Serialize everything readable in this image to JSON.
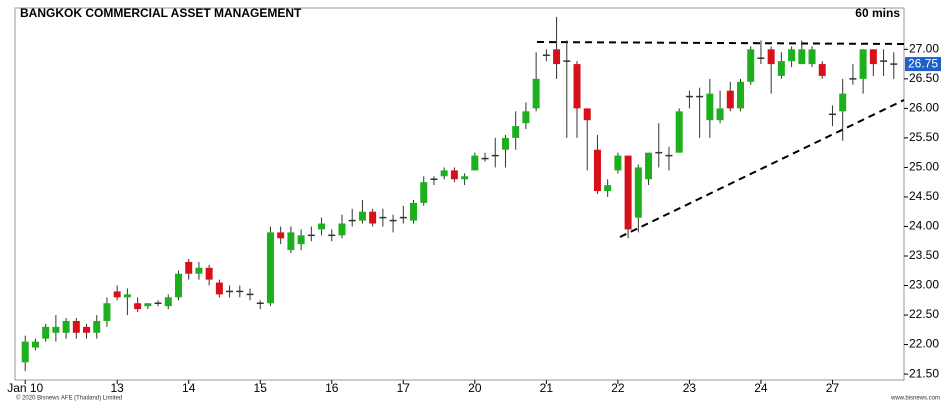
{
  "chart_data": {
    "type": "candlestick",
    "title": "BANGKOK COMMERCIAL ASSET MANAGEMENT",
    "subtitle": "60 mins",
    "footer_left": "© 2020 Bisnews AFE (Thailand) Limited",
    "footer_right": "www.bisnews.com",
    "up_color": "#1db01d",
    "down_color": "#d7101a",
    "last_price": 26.75,
    "last_price_color": "#1f5fc8",
    "ylim": [
      21.4,
      27.7
    ],
    "yticks": [
      {
        "value": 21.5,
        "label": "21.50"
      },
      {
        "value": 22,
        "label": "22.00"
      },
      {
        "value": 22.5,
        "label": "22.50"
      },
      {
        "value": 23,
        "label": "23.00"
      },
      {
        "value": 23.5,
        "label": "23.50"
      },
      {
        "value": 24,
        "label": "24.00"
      },
      {
        "value": 24.5,
        "label": "24.50"
      },
      {
        "value": 25,
        "label": "25.00"
      },
      {
        "value": 25.5,
        "label": "25.50"
      },
      {
        "value": 26,
        "label": "26.00"
      },
      {
        "value": 26.5,
        "label": "26.50"
      },
      {
        "value": 27,
        "label": "27.00"
      }
    ],
    "xlim": [
      -1,
      86
    ],
    "xticks": [
      {
        "value": 0,
        "label": "Jan 10"
      },
      {
        "value": 9,
        "label": "13"
      },
      {
        "value": 16,
        "label": "14"
      },
      {
        "value": 23,
        "label": "15"
      },
      {
        "value": 30,
        "label": "16"
      },
      {
        "value": 37,
        "label": "17"
      },
      {
        "value": 44,
        "label": "20"
      },
      {
        "value": 51,
        "label": "21"
      },
      {
        "value": 58,
        "label": "22"
      },
      {
        "value": 65,
        "label": "23"
      },
      {
        "value": 72,
        "label": "24"
      },
      {
        "value": 79,
        "label": "27"
      }
    ],
    "open": [
      21.7,
      21.95,
      22.1,
      22.2,
      22.2,
      22.4,
      22.3,
      22.2,
      22.4,
      22.9,
      22.8,
      22.7,
      22.65,
      22.7,
      22.65,
      22.8,
      23.4,
      23.2,
      23.3,
      23.05,
      22.9,
      22.9,
      22.85,
      22.7,
      22.7,
      23.9,
      23.6,
      23.7,
      23.85,
      23.95,
      23.85,
      23.85,
      24.1,
      24.1,
      24.25,
      24.15,
      24.1,
      24.15,
      24.1,
      24.4,
      24.8,
      24.85,
      24.95,
      24.8,
      24.95,
      25.15,
      25.2,
      25.3,
      25.5,
      25.75,
      26.0,
      26.9,
      27.0,
      26.8,
      26.75,
      26.0,
      25.3,
      24.6,
      24.95,
      25.2,
      24.15,
      24.8,
      25.25,
      25.2,
      25.25,
      26.2,
      26.2,
      25.8,
      25.8,
      26.3,
      26.0,
      26.45,
      26.85,
      27.0,
      26.55,
      26.8,
      26.75,
      26.75,
      26.75,
      25.9,
      25.95,
      26.5,
      26.5,
      27.0,
      26.8,
      26.75
    ],
    "high": [
      22.15,
      22.1,
      22.35,
      22.5,
      22.45,
      22.45,
      22.35,
      22.5,
      22.8,
      23.0,
      22.95,
      22.8,
      22.7,
      22.75,
      22.85,
      23.25,
      23.45,
      23.4,
      23.35,
      23.1,
      23.0,
      23.0,
      22.95,
      22.75,
      24.0,
      24.0,
      24.0,
      23.95,
      24.0,
      24.15,
      23.95,
      24.2,
      24.3,
      24.45,
      24.3,
      24.3,
      24.2,
      24.35,
      24.45,
      24.85,
      24.85,
      25.0,
      25.0,
      24.9,
      25.25,
      25.25,
      25.5,
      25.55,
      25.95,
      26.1,
      26.95,
      27.0,
      27.55,
      27.15,
      26.8,
      26.0,
      25.55,
      24.8,
      25.25,
      25.2,
      25.05,
      25.25,
      25.75,
      25.35,
      26.0,
      26.3,
      26.35,
      26.5,
      26.3,
      26.45,
      26.5,
      27.05,
      27.15,
      27.05,
      26.95,
      27.05,
      27.15,
      27.05,
      26.8,
      26.05,
      26.5,
      26.75,
      27.0,
      27.0,
      27.0,
      26.95
    ],
    "low": [
      21.55,
      21.9,
      22.05,
      22.05,
      22.1,
      22.1,
      22.1,
      22.1,
      22.3,
      22.75,
      22.5,
      22.55,
      22.6,
      22.65,
      22.6,
      22.75,
      23.1,
      23.1,
      23.0,
      22.8,
      22.8,
      22.8,
      22.75,
      22.6,
      22.65,
      23.7,
      23.55,
      23.6,
      23.75,
      23.85,
      23.75,
      23.8,
      24.0,
      24.05,
      24.0,
      24.0,
      23.9,
      24.05,
      24.05,
      24.35,
      24.7,
      24.8,
      24.75,
      24.7,
      24.95,
      25.1,
      25.0,
      25.0,
      25.3,
      25.65,
      25.95,
      26.8,
      26.5,
      25.5,
      25.5,
      24.95,
      24.55,
      24.5,
      24.9,
      23.8,
      23.9,
      24.7,
      25.0,
      24.95,
      25.25,
      26.0,
      25.5,
      25.5,
      25.75,
      25.95,
      25.95,
      26.4,
      26.75,
      26.25,
      26.5,
      26.7,
      26.75,
      26.7,
      26.5,
      25.7,
      25.45,
      26.4,
      26.25,
      26.55,
      26.55,
      26.5
    ],
    "close": [
      22.05,
      22.05,
      22.3,
      22.3,
      22.4,
      22.2,
      22.2,
      22.4,
      22.7,
      22.8,
      22.85,
      22.6,
      22.7,
      22.7,
      22.8,
      23.2,
      23.2,
      23.3,
      23.1,
      22.85,
      22.9,
      22.9,
      22.85,
      22.7,
      23.9,
      23.8,
      23.9,
      23.85,
      23.85,
      24.05,
      23.85,
      24.05,
      24.1,
      24.25,
      24.05,
      24.15,
      24.1,
      24.15,
      24.4,
      24.75,
      24.8,
      24.95,
      24.8,
      24.85,
      25.2,
      25.15,
      25.2,
      25.5,
      25.7,
      25.95,
      26.5,
      26.9,
      26.75,
      26.8,
      26.0,
      25.8,
      24.6,
      24.7,
      25.2,
      23.95,
      25.0,
      25.25,
      25.25,
      25.2,
      25.95,
      26.2,
      26.2,
      26.25,
      26.0,
      26.0,
      26.45,
      27.0,
      26.85,
      26.75,
      26.8,
      27.0,
      27.0,
      27.0,
      26.55,
      25.9,
      26.25,
      26.5,
      27.0,
      26.75,
      26.8,
      26.75
    ]
  }
}
